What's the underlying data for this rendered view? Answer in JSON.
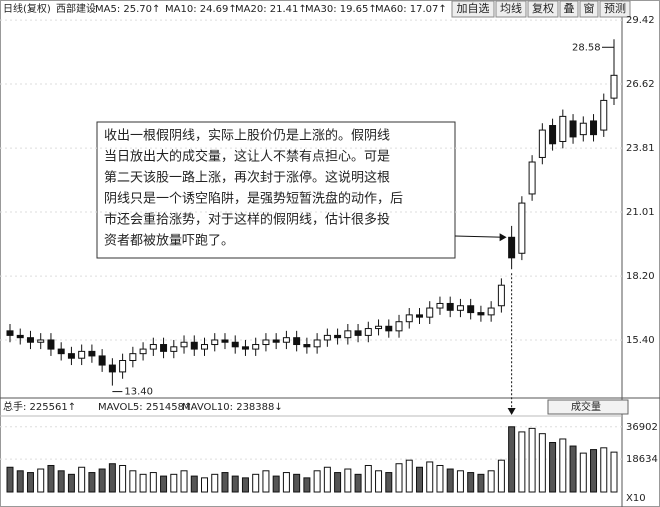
{
  "header": {
    "period": "日线(复权)",
    "stock": "西部建设",
    "ma": [
      "MA5: 25.70↑",
      "MA10: 24.69↑",
      "MA20: 21.41↑",
      "MA30: 19.65↑",
      "MA60: 17.07↑"
    ],
    "buttons": [
      "加自选",
      "均线",
      "复权",
      "叠",
      "窗",
      "预测"
    ]
  },
  "volume_header": {
    "total": "总手: 225561↑",
    "mavol5": "MAVOL5: 251458↑",
    "mavol10": "MAVOL10: 238388↓",
    "selector": "成交量",
    "multiplier": "X10"
  },
  "annotation": {
    "lines": [
      "收出一根假阴线，实际上股价仍是上涨的。假阴线",
      "当日放出大的成交量，这让人不禁有点担心。可是",
      "第二天该股一路上涨，再次封于涨停。这说明这根",
      "阴线只是一个诱空陷阱，是强势短暂洗盘的动作，后",
      "市还会重拾涨势，对于这样的假阴线，估计很多投",
      "资者都被放量吓跑了。"
    ],
    "high_label": "28.58",
    "low_label": "13.40"
  },
  "chart_data": {
    "type": "candlestick",
    "open": [
      15.8,
      15.6,
      15.5,
      15.3,
      15.4,
      15.0,
      14.8,
      14.6,
      14.9,
      14.7,
      14.3,
      14.0,
      14.5,
      14.8,
      15.0,
      15.2,
      14.9,
      15.1,
      15.3,
      15.0,
      15.2,
      15.4,
      15.3,
      15.1,
      15.0,
      15.2,
      15.4,
      15.3,
      15.5,
      15.2,
      15.1,
      15.4,
      15.6,
      15.5,
      15.8,
      15.6,
      15.9,
      16.0,
      15.8,
      16.2,
      16.5,
      16.4,
      16.8,
      17.0,
      16.7,
      16.9,
      16.6,
      16.5,
      16.9,
      19.9,
      19.2,
      21.8,
      23.4,
      24.8,
      24.1,
      25.0,
      24.4,
      25.0,
      24.6,
      26.0
    ],
    "high": [
      16.1,
      15.9,
      15.8,
      15.7,
      15.7,
      15.3,
      15.1,
      15.2,
      15.2,
      15.0,
      14.6,
      14.8,
      15.1,
      15.3,
      15.5,
      15.5,
      15.4,
      15.6,
      15.6,
      15.5,
      15.7,
      15.7,
      15.6,
      15.4,
      15.5,
      15.7,
      15.7,
      15.8,
      15.8,
      15.5,
      15.7,
      15.9,
      15.9,
      16.1,
      16.1,
      16.2,
      16.3,
      16.3,
      16.5,
      16.8,
      16.8,
      17.1,
      17.3,
      17.3,
      17.2,
      17.2,
      16.9,
      17.1,
      18.1,
      20.4,
      21.7,
      23.5,
      24.9,
      25.1,
      25.5,
      25.3,
      25.2,
      25.3,
      26.2,
      28.58
    ],
    "low": [
      15.3,
      15.2,
      15.0,
      15.0,
      14.7,
      14.5,
      14.3,
      14.3,
      14.4,
      14.0,
      13.4,
      13.7,
      14.2,
      14.5,
      14.7,
      14.6,
      14.6,
      14.8,
      14.7,
      14.7,
      14.9,
      15.0,
      14.8,
      14.7,
      14.7,
      14.9,
      15.0,
      15.0,
      14.9,
      14.8,
      14.8,
      15.1,
      15.2,
      15.2,
      15.3,
      15.3,
      15.6,
      15.5,
      15.5,
      15.9,
      16.1,
      16.1,
      16.5,
      16.4,
      16.4,
      16.3,
      16.2,
      16.2,
      16.6,
      18.5,
      18.9,
      21.5,
      23.1,
      23.7,
      23.8,
      24.0,
      24.1,
      24.1,
      24.3,
      25.7
    ],
    "close": [
      15.6,
      15.5,
      15.3,
      15.4,
      15.0,
      14.8,
      14.6,
      14.9,
      14.7,
      14.3,
      14.0,
      14.5,
      14.8,
      15.0,
      15.2,
      14.9,
      15.1,
      15.3,
      15.0,
      15.2,
      15.4,
      15.3,
      15.1,
      15.0,
      15.2,
      15.4,
      15.3,
      15.5,
      15.2,
      15.1,
      15.4,
      15.6,
      15.5,
      15.8,
      15.6,
      15.9,
      16.0,
      15.8,
      16.2,
      16.5,
      16.4,
      16.8,
      17.0,
      16.7,
      16.9,
      16.6,
      16.5,
      16.8,
      17.8,
      19.0,
      21.4,
      23.2,
      24.6,
      24.0,
      25.2,
      24.3,
      24.9,
      24.4,
      25.9,
      27.0
    ],
    "volume": [
      14000,
      12000,
      11000,
      13000,
      15000,
      12000,
      10000,
      14000,
      11000,
      13000,
      16000,
      15000,
      12000,
      10000,
      11000,
      9000,
      10000,
      12000,
      9000,
      8000,
      10000,
      11000,
      9000,
      8000,
      10000,
      12000,
      9000,
      11000,
      10000,
      8000,
      12000,
      14000,
      11000,
      13000,
      10000,
      15000,
      12000,
      11000,
      16000,
      18000,
      14000,
      17000,
      15000,
      13000,
      12000,
      11000,
      10000,
      12000,
      18000,
      36902,
      34000,
      36000,
      33000,
      28000,
      30000,
      26000,
      22000,
      24000,
      25000,
      22556
    ],
    "ylim": [
      12.9,
      29.6
    ],
    "yticks": [
      {
        "value": 15.4,
        "label": "15.40"
      },
      {
        "value": 18.2,
        "label": "18.20"
      },
      {
        "value": 21.01,
        "label": "21.01"
      },
      {
        "value": 23.81,
        "label": "23.81"
      },
      {
        "value": 26.62,
        "label": "26.62"
      },
      {
        "value": 29.42,
        "label": "29.42"
      }
    ],
    "vlim": [
      0,
      43000
    ],
    "vticks": [
      18634,
      36902
    ],
    "grid": true
  }
}
